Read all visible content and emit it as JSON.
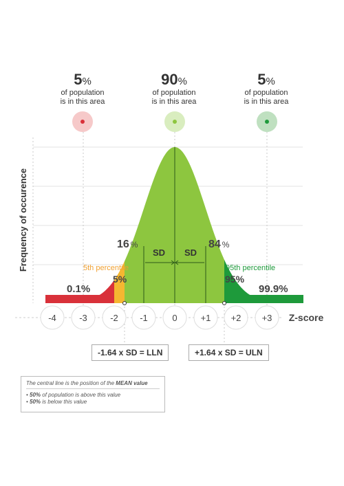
{
  "top_stats": [
    {
      "value": "5",
      "unit": "%",
      "line1": "of population",
      "line2": "is in this area",
      "dot_color": "#d9313a",
      "halo_color": "#f6c9c9"
    },
    {
      "value": "90",
      "unit": "%",
      "line1": "of population",
      "line2": "is in this area",
      "dot_color": "#8dc63f",
      "halo_color": "#d9edbf"
    },
    {
      "value": "5",
      "unit": "%",
      "line1": "of population",
      "line2": "is in this area",
      "dot_color": "#1e9a3b",
      "halo_color": "#bfe0c0"
    }
  ],
  "y_axis_label": "Frequency of occurence",
  "x_axis_label": "Z-score",
  "z_ticks": [
    "-4",
    "-3",
    "-2",
    "-1",
    "0",
    "+1",
    "+2",
    "+3"
  ],
  "labels": {
    "pct_16": "16",
    "pct_84": "84",
    "pct_sign": "%",
    "sd": "SD",
    "fifth_percentile": "5th percentile",
    "ninetyfifth_percentile": "95th percentile",
    "pct_5": "5%",
    "pct_95": "95%",
    "pct_0_1": "0.1%",
    "pct_99_9": "99.9%"
  },
  "boxes": {
    "lln": "-1.64 x SD = LLN",
    "uln": "+1.64 x SD = ULN"
  },
  "note": {
    "line1_prefix": "The central line is the position of the ",
    "line1_bold": "MEAN value",
    "bullet1_bold": "50%",
    "bullet1_rest": " of population is above this value",
    "bullet2_bold": "50%",
    "bullet2_rest": " is below this value"
  },
  "colors": {
    "red": "#d9313a",
    "yellow": "#f5b731",
    "light_green": "#8dc63f",
    "dark_green": "#1e9a3b",
    "fifth_label": "#f0a030",
    "ninetyfifth_label": "#1e9a3b"
  }
}
